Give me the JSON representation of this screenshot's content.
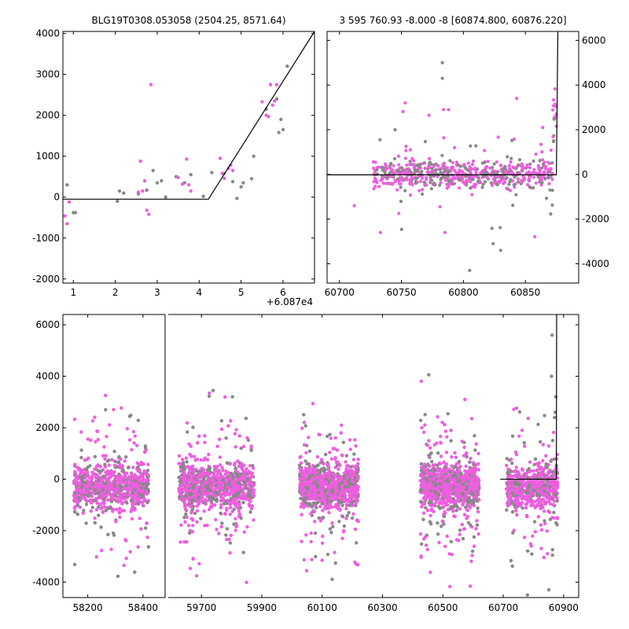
{
  "chart_data": [
    {
      "type": "scatter",
      "title": "BLG19T0308.053058 (2504.25, 8571.64)",
      "xlabel": "",
      "ylabel": "",
      "x_offset_label": "+6.087e4",
      "xlim": [
        0.75,
        6.75
      ],
      "ylim": [
        -2100,
        4050
      ],
      "xticks": [
        1,
        2,
        3,
        4,
        5,
        6
      ],
      "yticks": [
        -2000,
        -1000,
        0,
        1000,
        2000,
        3000,
        4000
      ],
      "y_axis_side": "left",
      "colors": {
        "series_a": "#888888",
        "series_b": "#ee5ee0",
        "model": "#000000"
      },
      "series": [
        {
          "values": [
            [
              0.85,
              300
            ],
            [
              1.0,
              -380
            ],
            [
              1.05,
              -380
            ],
            [
              2.05,
              -100
            ],
            [
              2.1,
              150
            ],
            [
              2.2,
              100
            ],
            [
              2.55,
              80
            ],
            [
              2.75,
              170
            ],
            [
              2.9,
              650
            ],
            [
              3.0,
              350
            ],
            [
              3.1,
              400
            ],
            [
              3.2,
              0
            ],
            [
              3.45,
              500
            ],
            [
              3.65,
              350
            ],
            [
              3.8,
              550
            ],
            [
              4.1,
              20
            ],
            [
              4.3,
              600
            ],
            [
              4.6,
              580
            ],
            [
              4.8,
              380
            ],
            [
              4.9,
              -30
            ],
            [
              5.0,
              250
            ],
            [
              5.05,
              350
            ],
            [
              5.25,
              450
            ],
            [
              5.3,
              1000
            ],
            [
              5.6,
              2150
            ],
            [
              5.85,
              2400
            ],
            [
              5.9,
              1580
            ],
            [
              5.95,
              1900
            ],
            [
              6.0,
              1650
            ],
            [
              6.1,
              3200
            ]
          ]
        },
        {
          "values": [
            [
              0.8,
              -460
            ],
            [
              0.85,
              -650
            ],
            [
              0.9,
              -120
            ],
            [
              2.55,
              120
            ],
            [
              2.6,
              880
            ],
            [
              2.65,
              150
            ],
            [
              2.7,
              400
            ],
            [
              2.75,
              -320
            ],
            [
              2.8,
              -420
            ],
            [
              2.85,
              2750
            ],
            [
              3.5,
              480
            ],
            [
              3.6,
              320
            ],
            [
              3.7,
              930
            ],
            [
              3.75,
              300
            ],
            [
              3.8,
              150
            ],
            [
              4.5,
              950
            ],
            [
              4.55,
              580
            ],
            [
              4.6,
              460
            ],
            [
              4.7,
              700
            ],
            [
              4.75,
              780
            ],
            [
              4.8,
              650
            ],
            [
              5.5,
              2330
            ],
            [
              5.6,
              2000
            ],
            [
              5.65,
              1970
            ],
            [
              5.7,
              2750
            ],
            [
              5.75,
              2250
            ],
            [
              5.8,
              2350
            ],
            [
              5.85,
              2750
            ]
          ]
        }
      ],
      "model_line": [
        [
          0.75,
          -50
        ],
        [
          4.22,
          -50
        ],
        [
          6.75,
          4050
        ]
      ]
    },
    {
      "type": "scatter",
      "title": "3 595 760.93 -8.000 -8 [60874.800, 60876.220]",
      "xlabel": "",
      "ylabel": "",
      "xlim": [
        60690,
        60893
      ],
      "ylim": [
        -4300,
        6400
      ],
      "xticks": [
        60700,
        60750,
        60800,
        60850
      ],
      "yticks": [
        -4000,
        -2000,
        0,
        2000,
        4000,
        6000
      ],
      "y_axis_side": "right",
      "model_line": [
        [
          60690,
          -20
        ],
        [
          60875,
          -20
        ],
        [
          60876.2,
          6400
        ]
      ]
    },
    {
      "type": "scatter",
      "title": "",
      "xlabel": "",
      "ylabel": "",
      "ylim": [
        -4600,
        6400
      ],
      "yticks": [
        -4000,
        -2000,
        0,
        2000,
        4000,
        6000
      ],
      "y_axis_side": "left",
      "segments": [
        {
          "xlim": [
            58110,
            58480
          ],
          "xticks": [
            58200,
            58400
          ],
          "cluster": [
            58150,
            58420
          ]
        },
        {
          "xlim": [
            59590,
            60950
          ],
          "xticks": [
            59700,
            59900,
            60100,
            60300,
            60500,
            60700,
            60900
          ],
          "clusters": [
            [
              59625,
              59875
            ],
            [
              60025,
              60220
            ],
            [
              60425,
              60620
            ],
            [
              60710,
              60880
            ]
          ]
        }
      ],
      "model_line": [
        [
          60690,
          0
        ],
        [
          60876,
          0
        ],
        [
          60877,
          6400
        ]
      ]
    }
  ]
}
